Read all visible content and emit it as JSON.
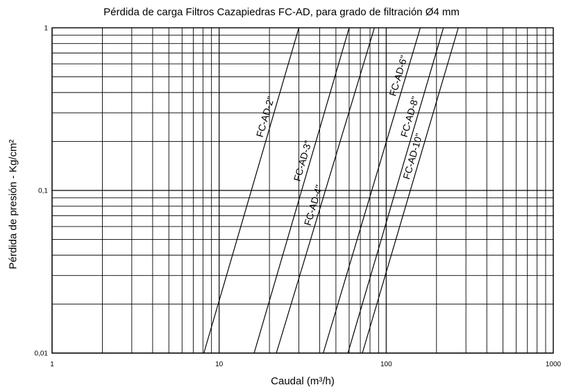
{
  "chart_data": {
    "type": "line",
    "title": "Pérdida de carga Filtros Cazapiedras FC-AD, para grado de filtración Ø4 mm",
    "xlabel": "Caudal (m³/h)",
    "ylabel": "Pérdida de presión - Kg/cm²",
    "x_scale": "log",
    "y_scale": "log",
    "xlim": [
      1,
      1000
    ],
    "ylim": [
      0.01,
      1
    ],
    "x_ticks": [
      {
        "value": 1,
        "label": "1"
      },
      {
        "value": 10,
        "label": "10"
      },
      {
        "value": 100,
        "label": "100"
      },
      {
        "value": 1000,
        "label": "1000"
      }
    ],
    "y_ticks": [
      {
        "value": 0.01,
        "label": "0,01"
      },
      {
        "value": 0.1,
        "label": "0,1"
      },
      {
        "value": 1,
        "label": "1"
      }
    ],
    "grid": true,
    "series": [
      {
        "name": "FC-AD-2\"",
        "x": [
          8.1,
          30.0
        ],
        "y": [
          0.01,
          1
        ]
      },
      {
        "name": "FC-AD-3\"",
        "x": [
          16.2,
          60.0
        ],
        "y": [
          0.01,
          1
        ]
      },
      {
        "name": "FC-AD-4\"",
        "x": [
          22.0,
          85.0
        ],
        "y": [
          0.01,
          1
        ]
      },
      {
        "name": "FC-AD-6\"",
        "x": [
          42.0,
          160.0
        ],
        "y": [
          0.01,
          1
        ]
      },
      {
        "name": "FC-AD-8\"",
        "x": [
          59.0,
          220.0
        ],
        "y": [
          0.01,
          1
        ]
      },
      {
        "name": "FC-AD-10\"",
        "x": [
          72.0,
          270.0
        ],
        "y": [
          0.01,
          1
        ]
      }
    ]
  }
}
